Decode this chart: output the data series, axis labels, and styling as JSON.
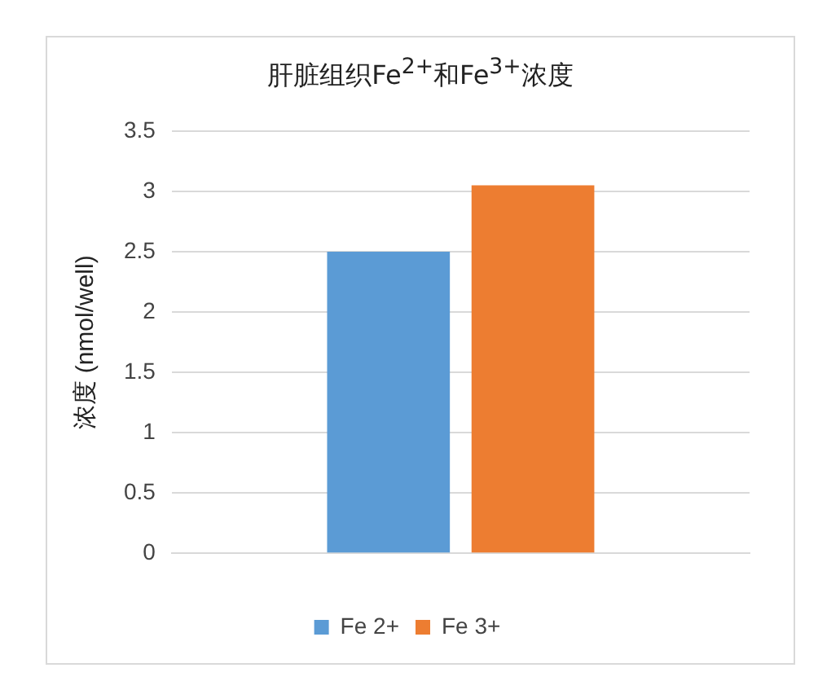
{
  "chart_data": {
    "type": "bar",
    "title": "肝脏组织Fe$^{2+}$和Fe$^{3+}$浓度",
    "ylabel": "浓度 (nmol/well)",
    "categories": [
      null
    ],
    "series": [
      {
        "name": "Fe 2+",
        "color": "#5b9bd5",
        "values": [
          2.5
        ]
      },
      {
        "name": "Fe 3+",
        "color": "#ed7d31",
        "values": [
          3.05
        ]
      }
    ],
    "ylim": [
      0,
      3.5
    ],
    "yticks": [
      0,
      0.5,
      1,
      1.5,
      2,
      2.5,
      3,
      3.5
    ],
    "grid": "y",
    "legend": "bottom"
  }
}
